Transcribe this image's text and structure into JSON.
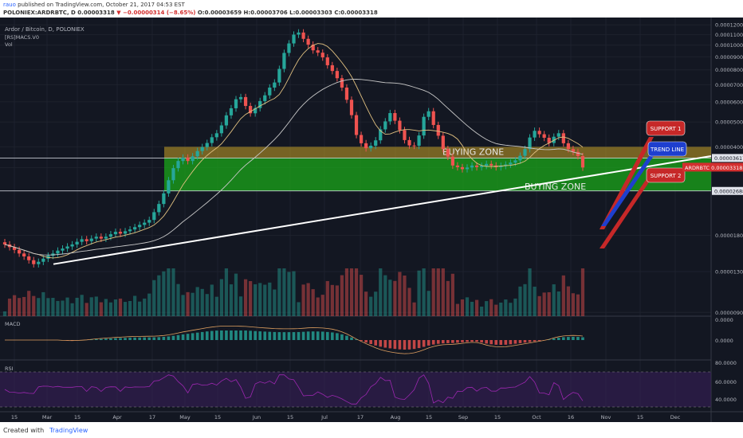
{
  "header": {
    "user": "rauo",
    "published": "published on TradingView.com, October 21, 2017 04:53 EST",
    "ohlc_prefix": "POLONIEX:ARDRBTC, D",
    "last": "0.00003318",
    "arrow": "▼",
    "change": "−0.00000314 (−8.65%)",
    "o": "O:0.00003659",
    "h": "H:0.00003706",
    "l": "L:0.00003303",
    "c": "C:0.00003318"
  },
  "legend": {
    "line1": "Ardor / Bitcoin, D, POLONIEX",
    "line2": "[RS]MACS.V0",
    "line3": "Vol"
  },
  "footer": {
    "created": "Created with",
    "brand": "TradingView"
  },
  "chart_data": {
    "type": "candlestick",
    "symbol": "POLONIEX:ARDRBTC",
    "interval": "D",
    "y_axis": {
      "scale": "log",
      "ticks": [
        "0.00012000",
        "0.00011000",
        "0.00010000",
        "0.00009000",
        "0.00008000",
        "0.00007000",
        "0.00006000",
        "0.00005000",
        "0.00004000",
        "0.00003617",
        "0.00003318",
        "0.00002688",
        "0.00001800",
        "0.00001300",
        "0.00000900"
      ]
    },
    "x_axis": {
      "ticks": [
        "15",
        "Mar",
        "15",
        "Apr",
        "17",
        "May",
        "15",
        "Jun",
        "15",
        "Jul",
        "17",
        "Aug",
        "15",
        "Sep",
        "15",
        "Oct",
        "16",
        "Nov",
        "15",
        "Dec"
      ]
    },
    "price_labels": [
      {
        "label": "0.00003617",
        "style": "white"
      },
      {
        "label": "ARDRBTC",
        "value": "0.00003318",
        "style": "red"
      },
      {
        "label": "0.00002688",
        "style": "white"
      }
    ],
    "closes": [
      1.66e-05,
      1.62e-05,
      1.58e-05,
      1.53e-05,
      1.49e-05,
      1.44e-05,
      1.39e-05,
      1.42e-05,
      1.46e-05,
      1.5e-05,
      1.53e-05,
      1.57e-05,
      1.6e-05,
      1.63e-05,
      1.66e-05,
      1.7e-05,
      1.74e-05,
      1.71e-05,
      1.75e-05,
      1.78e-05,
      1.75e-05,
      1.78e-05,
      1.82e-05,
      1.86e-05,
      1.83e-05,
      1.87e-05,
      1.9e-05,
      1.94e-05,
      1.98e-05,
      2.02e-05,
      2.07e-05,
      2.22e-05,
      2.39e-05,
      2.63e-05,
      2.96e-05,
      3.3e-05,
      3.52e-05,
      3.63e-05,
      3.52e-05,
      3.67e-05,
      3.85e-05,
      3.99e-05,
      4.14e-05,
      4.36e-05,
      4.52e-05,
      4.85e-05,
      5.31e-05,
      5.66e-05,
      6.14e-05,
      6.26e-05,
      5.78e-05,
      5.41e-05,
      5.67e-05,
      6.04e-05,
      6.36e-05,
      6.82e-05,
      7.14e-05,
      8.07e-05,
      9.32e-05,
      0.0001015,
      0.0001099,
      0.000112,
      0.0001058,
      0.0001004,
      9.54e-05,
      9.34e-05,
      8.95e-05,
      8.34e-05,
      7.92e-05,
      7.42e-05,
      6.82e-05,
      6.11e-05,
      5.32e-05,
      4.45e-05,
      4.13e-05,
      3.95e-05,
      4.04e-05,
      4.24e-05,
      4.68e-05,
      5.03e-05,
      5.42e-05,
      5.06e-05,
      4.65e-05,
      4.25e-05,
      4.05e-05,
      4.04e-05,
      4.43e-05,
      5.24e-05,
      5.51e-05,
      4.87e-05,
      4.42e-05,
      3.92e-05,
      3.66e-05,
      3.38e-05,
      3.33e-05,
      3.27e-05,
      3.32e-05,
      3.38e-05,
      3.33e-05,
      3.37e-05,
      3.43e-05,
      3.38e-05,
      3.33e-05,
      3.37e-05,
      3.41e-05,
      3.47e-05,
      3.54e-05,
      3.69e-05,
      3.92e-05,
      4.35e-05,
      4.62e-05,
      4.48e-05,
      4.34e-05,
      4.14e-05,
      4.38e-05,
      4.52e-05,
      4.13e-05,
      3.92e-05,
      3.82e-05,
      3.68e-05,
      3.32e-05
    ],
    "zones": [
      {
        "label": "BUYING ZONE",
        "upper": "0.00004000",
        "lower": "0.00003617"
      },
      {
        "label": "BUYING ZONE",
        "upper": "0.00003617",
        "lower": "0.00002688"
      }
    ],
    "annotations": [
      "SUPPORT 1",
      "TREND LINE",
      "SUPPORT 2"
    ],
    "macd": {
      "label": "MACD",
      "ticks": [
        "0.0000",
        "0.0000"
      ]
    },
    "rsi": {
      "label": "RSI",
      "ticks": [
        "80.0000",
        "60.0000",
        "40.0000"
      ]
    },
    "colors": {
      "up": "#26a69a",
      "down": "#ef5350",
      "zone_top": "#c9a227",
      "zone_bottom": "#1a9e1a",
      "support": "#c62828",
      "trend": "#1e3fcf"
    }
  }
}
